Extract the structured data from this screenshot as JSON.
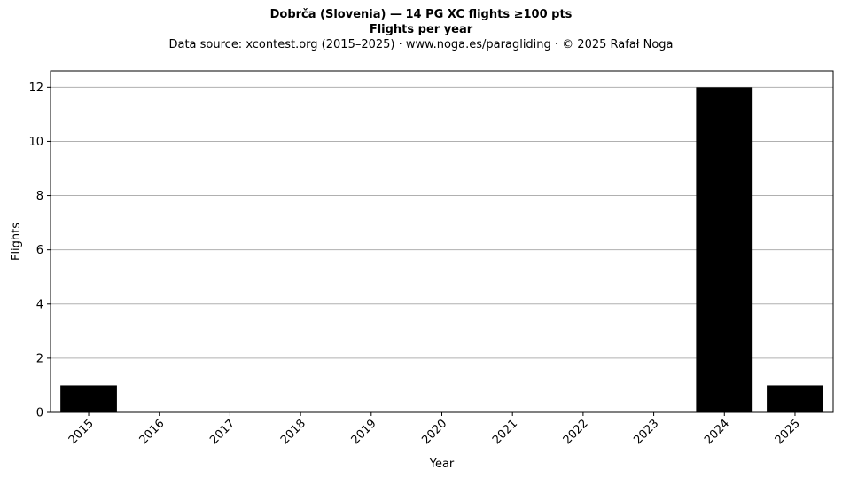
{
  "chart_data": {
    "type": "bar",
    "title": "Dobrča (Slovenia)  —  14 PG XC flights ≥100 pts",
    "subtitle": "Flights per year",
    "source_note": "Data source: xcontest.org (2015–2025)  ·  www.noga.es/paragliding  ·  © 2025 Rafał Noga",
    "xlabel": "Year",
    "ylabel": "Flights",
    "categories": [
      "2015",
      "2016",
      "2017",
      "2018",
      "2019",
      "2020",
      "2021",
      "2022",
      "2023",
      "2024",
      "2025"
    ],
    "values": [
      1,
      0,
      0,
      0,
      0,
      0,
      0,
      0,
      0,
      12,
      1
    ],
    "ylim": [
      0,
      12.6
    ],
    "yticks": [
      0,
      2,
      4,
      6,
      8,
      10,
      12
    ],
    "grid": "y-major",
    "bar_color": "#000000",
    "grid_color": "#b0b0b0"
  }
}
